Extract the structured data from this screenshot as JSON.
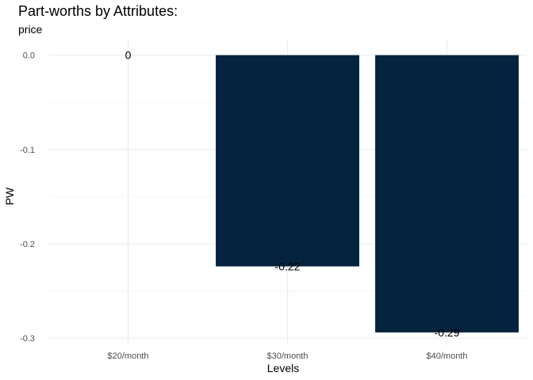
{
  "chart_data": {
    "type": "bar",
    "title": "Part-worths by Attributes:",
    "subtitle": "price",
    "xlabel": "Levels",
    "ylabel": "PW",
    "categories": [
      "$20/month",
      "$30/month",
      "$40/month"
    ],
    "values": [
      0.0,
      -0.224,
      -0.294
    ],
    "data_labels": [
      "0",
      "-0.22",
      "-0.29"
    ],
    "ylim": [
      -0.3,
      0.0
    ],
    "y_ticks": [
      0.0,
      -0.1,
      -0.2,
      -0.3
    ],
    "y_tick_labels": [
      "0.0",
      "-0.1",
      "-0.2",
      "-0.3"
    ],
    "grid": true,
    "bar_color": "#03233F",
    "legend": "none"
  }
}
